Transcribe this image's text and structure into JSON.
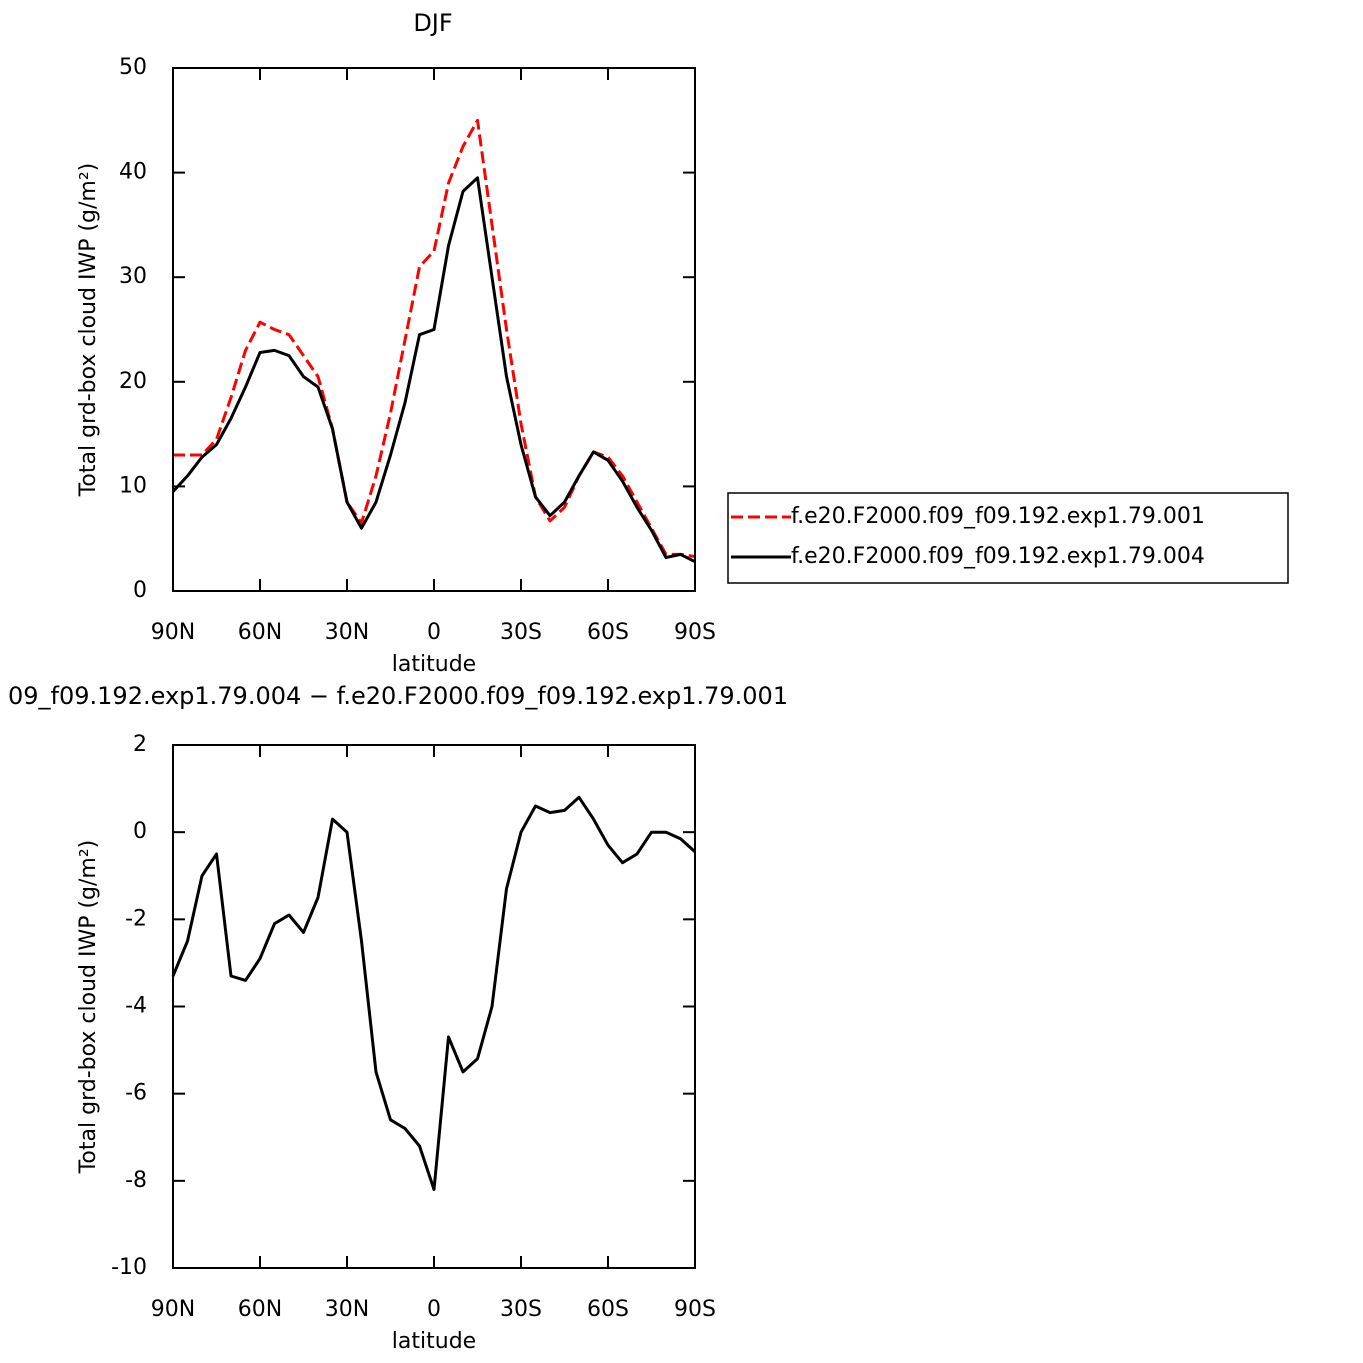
{
  "chart_data": [
    {
      "type": "line",
      "title": "DJF",
      "xlabel": "latitude",
      "ylabel": "Total grd-box cloud IWP (g/m²)",
      "x": [
        90,
        85,
        80,
        75,
        70,
        65,
        60,
        55,
        50,
        45,
        40,
        35,
        30,
        25,
        20,
        15,
        10,
        5,
        0,
        -5,
        -10,
        -15,
        -20,
        -25,
        -30,
        -35,
        -40,
        -45,
        -50,
        -55,
        -60,
        -65,
        -70,
        -75,
        -80,
        -85,
        -90
      ],
      "series": [
        {
          "name": "f.e20.F2000.f09_f09.192.exp1.79.001",
          "color": "#ff0000",
          "linestyle": "dashed",
          "values": [
            13,
            13,
            13,
            14.5,
            18.5,
            23,
            25.7,
            25,
            24.5,
            22.5,
            20.5,
            15.5,
            8.5,
            6.5,
            11,
            17,
            24,
            31,
            32.5,
            39,
            42.5,
            45,
            35,
            25,
            16,
            9,
            6.7,
            8,
            11,
            13.3,
            12.8,
            11,
            8.5,
            6,
            3.5,
            3.5,
            3.3
          ]
        },
        {
          "name": "f.e20.F2000.f09_f09.192.exp1.79.004",
          "color": "#000000",
          "linestyle": "solid",
          "values": [
            9.5,
            11,
            12.8,
            14,
            16.5,
            19.5,
            22.8,
            23,
            22.5,
            20.5,
            19.5,
            15.5,
            8.5,
            6,
            8.5,
            13,
            18,
            24.5,
            25,
            33,
            38.2,
            39.5,
            30,
            20.5,
            14,
            9,
            7.2,
            8.5,
            11,
            13.3,
            12.5,
            10.5,
            8,
            5.8,
            3.2,
            3.5,
            2.8
          ]
        }
      ],
      "xlim": [
        90,
        -90
      ],
      "xticks": [
        {
          "value": 90,
          "label": "90N"
        },
        {
          "value": 60,
          "label": "60N"
        },
        {
          "value": 30,
          "label": "30N"
        },
        0,
        {
          "value": -30,
          "label": "30S"
        },
        {
          "value": -60,
          "label": "60S"
        },
        {
          "value": -90,
          "label": "90S"
        }
      ],
      "ylim": [
        0,
        50
      ],
      "yticks": [
        0,
        10,
        20,
        30,
        40,
        50
      ],
      "legend": "right"
    },
    {
      "type": "line",
      "title": "09_f09.192.exp1.79.004 − f.e20.F2000.f09_f09.192.exp1.79.001",
      "xlabel": "latitude",
      "ylabel": "Total grd-box cloud IWP (g/m²)",
      "x": [
        90,
        85,
        80,
        75,
        70,
        65,
        60,
        55,
        50,
        45,
        40,
        35,
        30,
        25,
        20,
        15,
        10,
        5,
        0,
        -5,
        -10,
        -15,
        -20,
        -25,
        -30,
        -35,
        -40,
        -45,
        -50,
        -55,
        -60,
        -65,
        -70,
        -75,
        -80,
        -85,
        -90
      ],
      "color": "#000000",
      "values": [
        -3.3,
        -2.5,
        -1,
        -0.5,
        -3.3,
        -3.4,
        -2.9,
        -2.1,
        -1.9,
        -2.3,
        -1.5,
        0.3,
        0,
        -2.5,
        -5.5,
        -6.6,
        -6.8,
        -7.2,
        -8.2,
        -4.7,
        -5.5,
        -5.2,
        -4,
        -1.3,
        0,
        0.6,
        0.45,
        0.5,
        0.8,
        0.3,
        -0.3,
        -0.7,
        -0.5,
        0,
        0,
        -0.15,
        -0.45
      ],
      "xlim": [
        90,
        -90
      ],
      "xticks": [
        {
          "value": 90,
          "label": "90N"
        },
        {
          "value": 60,
          "label": "60N"
        },
        {
          "value": 30,
          "label": "30N"
        },
        0,
        {
          "value": -30,
          "label": "30S"
        },
        {
          "value": -60,
          "label": "60S"
        },
        {
          "value": -90,
          "label": "90S"
        }
      ],
      "ylim": [
        -10,
        2
      ],
      "yticks": [
        -10,
        -8,
        -6,
        -4,
        -2,
        0,
        2
      ]
    }
  ]
}
